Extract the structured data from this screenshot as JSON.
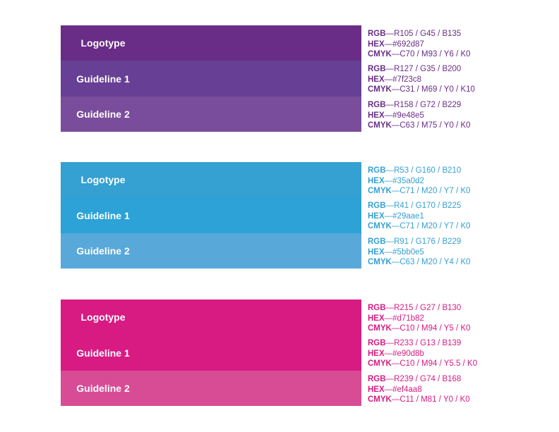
{
  "groups": [
    {
      "color": "#692d87",
      "rows": [
        {
          "label": "Logotype",
          "swatch": "#692d87",
          "rgb": "R105 / G45 / B135",
          "hex": "#692d87",
          "cmyk": "C70 / M93 / Y6 / K0"
        },
        {
          "label": "Guideline 1",
          "swatch": "#673f95",
          "rgb": "R127 / G35 / B200",
          "hex": "#7f23c8",
          "cmyk": "C31 / M69 / Y0  / K10"
        },
        {
          "label": "Guideline 2",
          "swatch": "#7a4d9c",
          "rgb": "R158 / G72 / B229",
          "hex": "#9e48e5",
          "cmyk": "C63 / M75 / Y0  / K0"
        }
      ]
    },
    {
      "color": "#35a0d2",
      "rows": [
        {
          "label": "Logotype",
          "swatch": "#35a0d2",
          "rgb": "R53 / G160 / B210",
          "hex": "#35a0d2",
          "cmyk": "C71 / M20 / Y7 / K0"
        },
        {
          "label": "Guideline 1",
          "swatch": "#2ca2d6",
          "rgb": "R41 / G170 / B225",
          "hex": "#29aae1",
          "cmyk": "C71 / M20 / Y7 / K0"
        },
        {
          "label": "Guideline 2",
          "swatch": "#58a8da",
          "rgb": "R91 / G176 / B229",
          "hex": "#5bb0e5",
          "cmyk": "C63 / M20 / Y4 / K0"
        }
      ]
    },
    {
      "color": "#d71b82",
      "rows": [
        {
          "label": "Logotype",
          "swatch": "#d71b82",
          "rgb": "R215 / G27 / B130",
          "hex": "#d71b82",
          "cmyk": "C10 /  M94 / Y5 / K0"
        },
        {
          "label": "Guideline 1",
          "swatch": "#d81b83",
          "rgb": "R233 / G13 / B139",
          "hex": "#e90d8b",
          "cmyk": "C10 / M94 / Y5.5 / K0"
        },
        {
          "label": "Guideline 2",
          "swatch": "#d84b95",
          "rgb": "R239 / G74 / B168",
          "hex": "#ef4aa8",
          "cmyk": "C11 / M81 / Y0 / K0"
        }
      ]
    }
  ],
  "labels": {
    "rgb": "RGB",
    "hex": "HEX",
    "cmyk": "CMYK",
    "sep": "—"
  }
}
